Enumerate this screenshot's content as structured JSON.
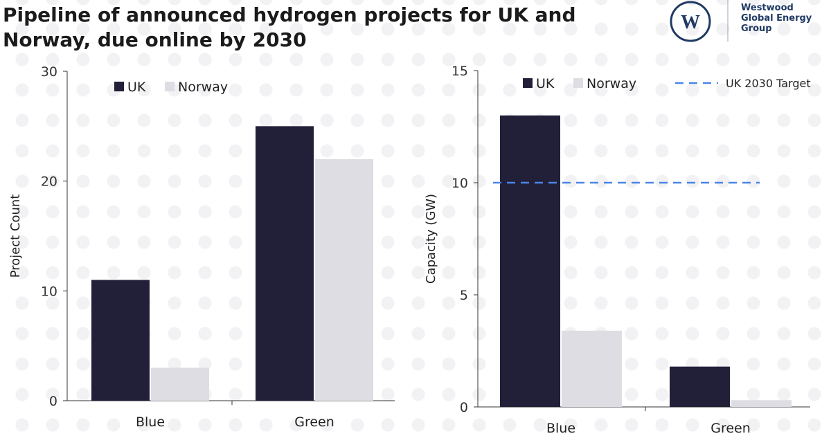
{
  "title": "Pipeline of announced hydrogen projects for UK and Norway, due online by 2030",
  "logo": {
    "lines": [
      "Westwood",
      "Global Energy",
      "Group"
    ],
    "mark": "W"
  },
  "colors": {
    "uk": "#221f38",
    "norway": "#dedde3",
    "target": "#4a86e8",
    "axis": "#333333"
  },
  "chart_data": [
    {
      "type": "bar",
      "title": "",
      "xlabel": "",
      "ylabel": "Project Count",
      "ylim": [
        0,
        30
      ],
      "yticks": [
        0,
        10,
        20,
        30
      ],
      "categories": [
        "Blue",
        "Green"
      ],
      "series": [
        {
          "name": "UK",
          "values": [
            11,
            25
          ]
        },
        {
          "name": "Norway",
          "values": [
            3,
            22
          ]
        }
      ],
      "legend": "top-left"
    },
    {
      "type": "bar",
      "title": "",
      "xlabel": "",
      "ylabel": "Capacity (GW)",
      "ylim": [
        0,
        15
      ],
      "yticks": [
        0,
        5,
        10,
        15
      ],
      "categories": [
        "Blue",
        "Green"
      ],
      "series": [
        {
          "name": "UK",
          "values": [
            13.0,
            1.8
          ]
        },
        {
          "name": "Norway",
          "values": [
            3.4,
            0.3
          ]
        }
      ],
      "reference_line": {
        "name": "UK 2030 Target",
        "value": 10
      },
      "legend": "top"
    }
  ]
}
